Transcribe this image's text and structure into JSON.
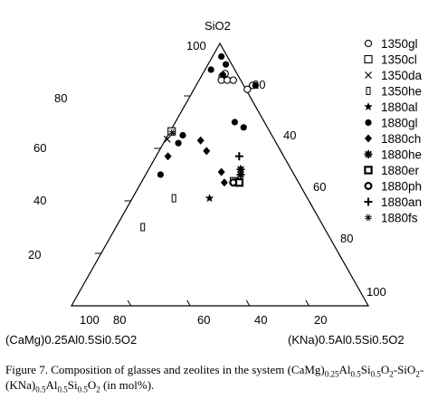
{
  "chart_data": {
    "type": "ternary-scatter",
    "apex_labels": {
      "top": "SiO2",
      "left": "(CaMg)0.25Al0.5Si0.5O2",
      "right": "(KNa)0.5Al0.5Si0.5O2"
    },
    "ticks": {
      "left_edge": [
        "20",
        "40",
        "60",
        "80",
        "100"
      ],
      "right_edge": [
        "20",
        "40",
        "60",
        "80",
        "100"
      ],
      "bottom_edge": [
        "100",
        "80",
        "60",
        "40",
        "20"
      ]
    },
    "series": [
      {
        "name": "1350gl",
        "marker": "open-circle",
        "points": [
          [
            88.5,
            7.5
          ],
          [
            87.5,
            7
          ],
          [
            86,
            7.5
          ],
          [
            86,
            9.5
          ],
          [
            86,
            11.5
          ],
          [
            84,
            19
          ],
          [
            82.5,
            18
          ]
        ]
      },
      {
        "name": "1350cl",
        "marker": "open-square",
        "points": [
          [
            66.5,
            0.5
          ],
          [
            47.5,
            31
          ]
        ]
      },
      {
        "name": "1350da",
        "marker": "cross",
        "points": [
          [
            63.5,
            0.5
          ]
        ]
      },
      {
        "name": "1350he",
        "marker": "tall-rect",
        "points": [
          [
            41,
            14
          ],
          [
            30,
            9
          ]
        ]
      },
      {
        "name": "1880al",
        "marker": "star",
        "points": [
          [
            41,
            26
          ]
        ]
      },
      {
        "name": "1880gl",
        "marker": "filled-circle",
        "points": [
          [
            95,
            3
          ],
          [
            92,
            6
          ],
          [
            90,
            2
          ],
          [
            88,
            7
          ],
          [
            84,
            20
          ],
          [
            70,
            20
          ],
          [
            68,
            24
          ],
          [
            65,
            5
          ],
          [
            62,
            5
          ],
          [
            50,
            5
          ]
        ]
      },
      {
        "name": "1880ch",
        "marker": "filled-diamond",
        "points": [
          [
            63,
            12
          ],
          [
            59,
            16
          ],
          [
            57,
            4
          ],
          [
            51,
            25
          ],
          [
            47,
            28
          ]
        ]
      },
      {
        "name": "1880he",
        "marker": "asterisk",
        "points": [
          [
            52,
            31
          ],
          [
            50,
            32
          ]
        ]
      },
      {
        "name": "1880er",
        "marker": "bold-square",
        "points": [
          [
            47,
            33
          ]
        ]
      },
      {
        "name": "1880ph",
        "marker": "bold-circle",
        "points": [
          [
            47,
            31
          ]
        ]
      },
      {
        "name": "1880an",
        "marker": "plus",
        "points": [
          [
            57,
            28
          ]
        ]
      },
      {
        "name": "1880fs",
        "marker": "x-star",
        "points": [
          [
            66,
            1
          ]
        ]
      }
    ]
  },
  "caption": {
    "prefix": "Figure 7. Composition of glasses and zeolites in the system (CaMg)",
    "s1": "0.25",
    "t1": "Al",
    "s2": "0.5",
    "t2": "Si",
    "s3": "0.5",
    "t3": "O",
    "s4": "2",
    "t4": "-SiO",
    "s5": "2",
    "t5": "-(KNa)",
    "s6": "0.5",
    "t6": "Al",
    "s7": "0.5",
    "t7": "Si",
    "s8": "0.5",
    "t8": "O",
    "s9": "2",
    "suffix": " (in mol%)."
  }
}
